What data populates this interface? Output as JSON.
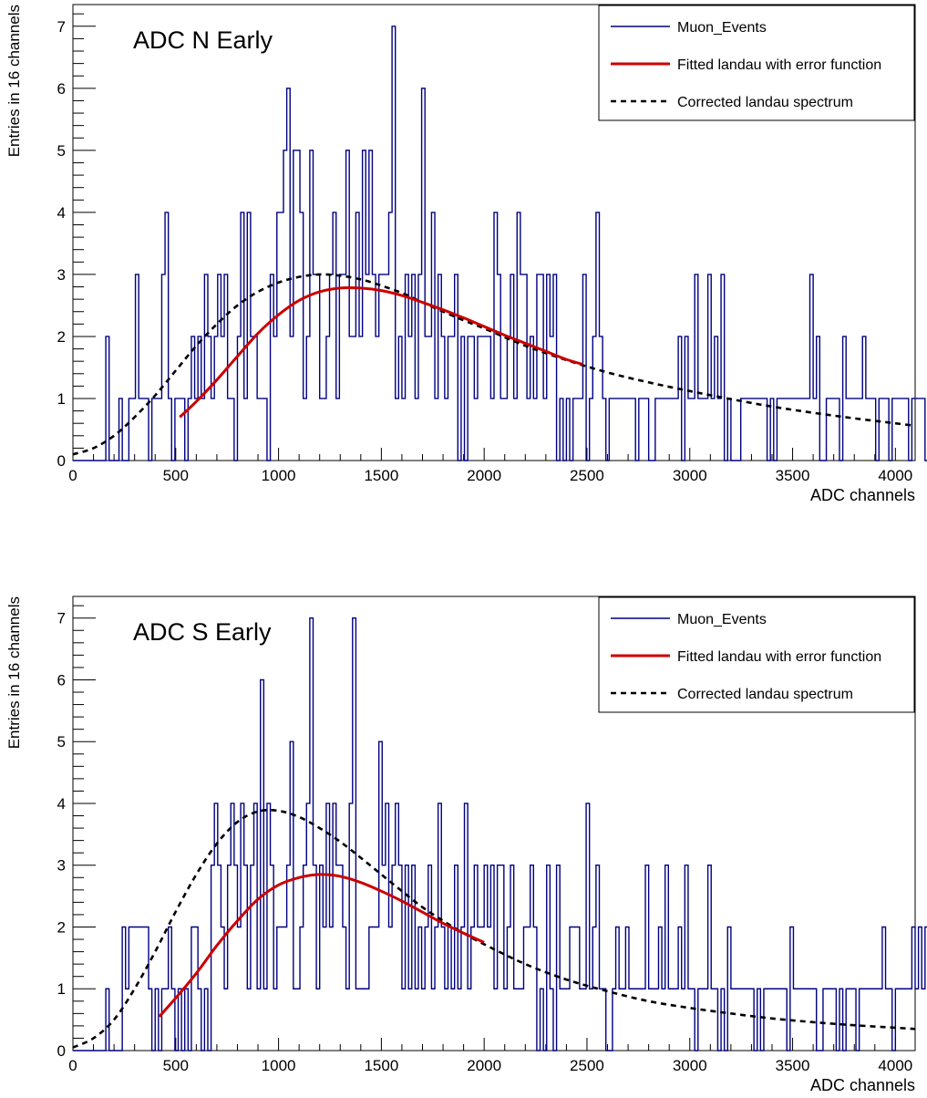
{
  "chart_data": [
    {
      "type": "step-histogram",
      "title": "ADC N Early",
      "xlabel": "ADC channels",
      "ylabel": "Entries in 16 channels",
      "xlim": [
        0,
        4096
      ],
      "ylim": [
        0,
        7.35
      ],
      "bin_width": 16,
      "x_ticks": [
        0,
        500,
        1000,
        1500,
        2000,
        2500,
        3000,
        3500,
        4000
      ],
      "y_ticks": [
        0,
        1,
        2,
        3,
        4,
        5,
        6,
        7
      ],
      "legend_position": "top-right",
      "legend": [
        "Muon_Events",
        "Fitted landau with error function",
        "Corrected landau spectrum"
      ],
      "colors": {
        "histogram": "#000080",
        "fit": "#cc0000",
        "corrected": "#000000"
      },
      "series": [
        {
          "name": "Muon_Events",
          "style": "step",
          "values": [
            0,
            0,
            0,
            0,
            0,
            0,
            0,
            0,
            0,
            0,
            2,
            0,
            0,
            0,
            1,
            0,
            0,
            1,
            1,
            3,
            1,
            1,
            1,
            0,
            1,
            1,
            1,
            3,
            4,
            1,
            0,
            1,
            1,
            1,
            0,
            1,
            2,
            1,
            2,
            1,
            3,
            2,
            1,
            2,
            3,
            2,
            3,
            1,
            1,
            0,
            2,
            4,
            1,
            4,
            2,
            2,
            1,
            1,
            1,
            0,
            3,
            2,
            4,
            4,
            5,
            6,
            2,
            5,
            5,
            4,
            1,
            2,
            5,
            3,
            3,
            1,
            1,
            2,
            3,
            4,
            1,
            3,
            3,
            5,
            2,
            2,
            4,
            2,
            5,
            3,
            5,
            3,
            2,
            3,
            3,
            3,
            4,
            7,
            1,
            2,
            1,
            3,
            2,
            3,
            1,
            3,
            6,
            2,
            2,
            4,
            1,
            3,
            2,
            1,
            2,
            2,
            3,
            0,
            2,
            0,
            2,
            2,
            1,
            2,
            2,
            2,
            2,
            1,
            4,
            3,
            1,
            1,
            2,
            3,
            1,
            4,
            3,
            3,
            1,
            2,
            1,
            3,
            3,
            1,
            3,
            2,
            3,
            0,
            1,
            0,
            1,
            0,
            1,
            1,
            1,
            3,
            0,
            1,
            2,
            4,
            2,
            1,
            0,
            1,
            1,
            1,
            1,
            1,
            1,
            1,
            1,
            0,
            1,
            1,
            1,
            0,
            0,
            1,
            1,
            1,
            1,
            1,
            1,
            1,
            2,
            0,
            2,
            1,
            1,
            3,
            1,
            1,
            1,
            3,
            1,
            2,
            1,
            3,
            0,
            1,
            0,
            0,
            0,
            1,
            1,
            1,
            1,
            1,
            1,
            1,
            1,
            0,
            1,
            0,
            1,
            1,
            1,
            1,
            1,
            1,
            1,
            1,
            1,
            1,
            3,
            1,
            2,
            0,
            0,
            1,
            1,
            1,
            1,
            0,
            2,
            1,
            1,
            1,
            1,
            1,
            2,
            1,
            1,
            1,
            0,
            1,
            1,
            1,
            0,
            1,
            1,
            1,
            1,
            1,
            0,
            1,
            1,
            1,
            1,
            0,
            1,
            1,
            1,
            1,
            0,
            1,
            1
          ]
        },
        {
          "name": "Fitted landau with error function",
          "style": "solid",
          "x": [
            520,
            600,
            700,
            800,
            900,
            1000,
            1100,
            1200,
            1300,
            1400,
            1500,
            1600,
            1700,
            1800,
            1900,
            2000,
            2100,
            2200,
            2300,
            2400,
            2480
          ],
          "values": [
            0.7,
            0.95,
            1.3,
            1.68,
            2.05,
            2.35,
            2.58,
            2.72,
            2.78,
            2.78,
            2.74,
            2.66,
            2.55,
            2.43,
            2.3,
            2.16,
            2.02,
            1.89,
            1.76,
            1.63,
            1.55
          ]
        },
        {
          "name": "Corrected landau spectrum",
          "style": "dashed",
          "x": [
            0,
            100,
            200,
            300,
            400,
            500,
            600,
            700,
            800,
            900,
            1000,
            1100,
            1200,
            1300,
            1400,
            1500,
            1600,
            1700,
            1800,
            1900,
            2000,
            2200,
            2400,
            2600,
            2800,
            3000,
            3200,
            3400,
            3600,
            3800,
            4000,
            4096
          ],
          "values": [
            0.1,
            0.2,
            0.4,
            0.7,
            1.05,
            1.45,
            1.85,
            2.2,
            2.5,
            2.72,
            2.87,
            2.96,
            3.0,
            2.98,
            2.92,
            2.82,
            2.7,
            2.55,
            2.4,
            2.26,
            2.13,
            1.85,
            1.62,
            1.42,
            1.26,
            1.12,
            0.99,
            0.87,
            0.77,
            0.68,
            0.6,
            0.56
          ]
        }
      ]
    },
    {
      "type": "step-histogram",
      "title": "ADC S Early",
      "xlabel": "ADC channels",
      "ylabel": "Entries in 16 channels",
      "xlim": [
        0,
        4096
      ],
      "ylim": [
        0,
        7.35
      ],
      "bin_width": 16,
      "x_ticks": [
        0,
        500,
        1000,
        1500,
        2000,
        2500,
        3000,
        3500,
        4000
      ],
      "y_ticks": [
        0,
        1,
        2,
        3,
        4,
        5,
        6,
        7
      ],
      "legend_position": "top-right",
      "legend": [
        "Muon_Events",
        "Fitted landau with error function",
        "Corrected landau spectrum"
      ],
      "colors": {
        "histogram": "#000080",
        "fit": "#cc0000",
        "corrected": "#000000"
      },
      "series": [
        {
          "name": "Muon_Events",
          "style": "step",
          "values": [
            0,
            0,
            0,
            0,
            0,
            0,
            0,
            0,
            0,
            0,
            1,
            0,
            0,
            0,
            0,
            2,
            1,
            2,
            2,
            2,
            2,
            2,
            2,
            1,
            0,
            1,
            0,
            1,
            1,
            2,
            1,
            0,
            1,
            0,
            1,
            0,
            2,
            2,
            1,
            0,
            1,
            0,
            3,
            4,
            3,
            2,
            1,
            3,
            4,
            3,
            2,
            4,
            3,
            1,
            3,
            4,
            1,
            6,
            1,
            4,
            3,
            1,
            2,
            2,
            2,
            3,
            5,
            1,
            1,
            2,
            3,
            4,
            7,
            3,
            1,
            3,
            2,
            4,
            2,
            4,
            3,
            3,
            2,
            1,
            4,
            7,
            1,
            1,
            1,
            1,
            2,
            2,
            2,
            5,
            3,
            4,
            2,
            3,
            4,
            3,
            1,
            3,
            1,
            3,
            1,
            2,
            1,
            2,
            3,
            1,
            2,
            4,
            2,
            1,
            2,
            1,
            3,
            1,
            2,
            4,
            1,
            2,
            3,
            2,
            2,
            3,
            2,
            3,
            1,
            3,
            3,
            1,
            2,
            3,
            1,
            1,
            1,
            2,
            2,
            3,
            2,
            0,
            1,
            0,
            3,
            1,
            0,
            3,
            1,
            1,
            1,
            2,
            2,
            2,
            1,
            1,
            4,
            1,
            2,
            3,
            1,
            1,
            0,
            0,
            1,
            2,
            1,
            1,
            2,
            1,
            1,
            1,
            1,
            1,
            3,
            1,
            1,
            1,
            2,
            1,
            3,
            1,
            1,
            1,
            2,
            1,
            3,
            1,
            1,
            0,
            1,
            1,
            1,
            3,
            1,
            1,
            0,
            1,
            0,
            2,
            1,
            1,
            1,
            1,
            1,
            1,
            1,
            0,
            1,
            0,
            1,
            1,
            1,
            1,
            1,
            1,
            1,
            0,
            2,
            1,
            1,
            1,
            1,
            1,
            1,
            1,
            0,
            0,
            1,
            1,
            1,
            1,
            0,
            1,
            0,
            1,
            1,
            1,
            0,
            1,
            1,
            1,
            1,
            1,
            1,
            1,
            2,
            1,
            1,
            0,
            1,
            1,
            1,
            1,
            1,
            2,
            1,
            2,
            1,
            2,
            1,
            0,
            1,
            2,
            1,
            0,
            1
          ]
        },
        {
          "name": "Fitted landau with error function",
          "style": "solid",
          "x": [
            420,
            500,
            600,
            700,
            800,
            900,
            1000,
            1100,
            1200,
            1300,
            1400,
            1500,
            1600,
            1700,
            1800,
            1900,
            2000
          ],
          "values": [
            0.55,
            0.85,
            1.25,
            1.7,
            2.1,
            2.45,
            2.68,
            2.8,
            2.85,
            2.82,
            2.72,
            2.58,
            2.42,
            2.24,
            2.06,
            1.9,
            1.75
          ]
        },
        {
          "name": "Corrected landau spectrum",
          "style": "dashed",
          "x": [
            0,
            100,
            200,
            300,
            400,
            500,
            600,
            700,
            800,
            900,
            1000,
            1100,
            1200,
            1300,
            1400,
            1500,
            1600,
            1700,
            1800,
            1900,
            2000,
            2200,
            2400,
            2600,
            2800,
            3000,
            3200,
            3400,
            3600,
            3800,
            4000,
            4096
          ],
          "values": [
            0.05,
            0.2,
            0.5,
            1.0,
            1.6,
            2.25,
            2.85,
            3.35,
            3.7,
            3.87,
            3.88,
            3.78,
            3.6,
            3.38,
            3.12,
            2.85,
            2.58,
            2.32,
            2.1,
            1.9,
            1.72,
            1.4,
            1.15,
            0.96,
            0.8,
            0.69,
            0.6,
            0.52,
            0.46,
            0.41,
            0.37,
            0.35
          ]
        }
      ]
    }
  ]
}
